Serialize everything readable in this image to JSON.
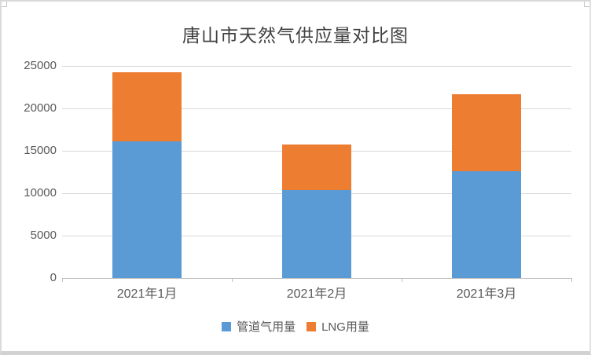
{
  "chart_data": {
    "type": "bar",
    "stacked": true,
    "title": "唐山市天然气供应量对比图",
    "categories": [
      "2021年1月",
      "2021年2月",
      "2021年3月"
    ],
    "series": [
      {
        "name": "管道气用量",
        "color": "#5B9BD5",
        "values": [
          16100,
          10400,
          12600
        ]
      },
      {
        "name": "LNG用量",
        "color": "#ED7D31",
        "values": [
          8200,
          5300,
          9100
        ]
      }
    ],
    "totals": [
      24300,
      15700,
      21700
    ],
    "ylim": [
      0,
      25000
    ],
    "yticks": [
      0,
      5000,
      10000,
      15000,
      20000,
      25000
    ],
    "grid": true,
    "legend_position": "bottom",
    "colors": {
      "gridline": "#d9d9d9",
      "axis_line": "#bfbfbf",
      "tick_label": "#595959",
      "title": "#404040"
    }
  }
}
